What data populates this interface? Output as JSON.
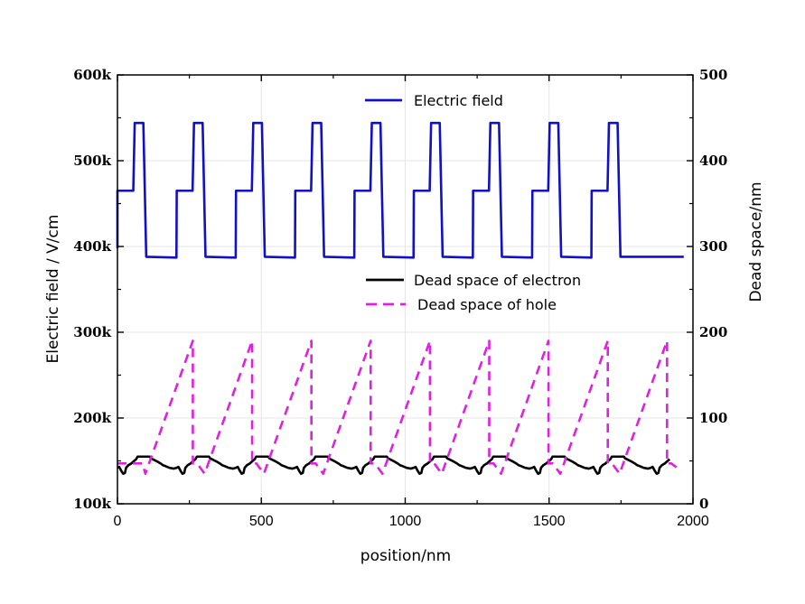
{
  "chart_data": {
    "type": "line",
    "xlabel": "position/nm",
    "ylabel_left": "Electric field / V/cm",
    "ylabel_right": "Dead space/nm",
    "xlim": [
      0,
      2000
    ],
    "ylim_left": [
      100000,
      600000
    ],
    "ylim_right": [
      0,
      500
    ],
    "x_ticks": [
      0,
      500,
      1000,
      1500,
      2000
    ],
    "x_tick_labels": [
      "0",
      "500",
      "1000",
      "1500",
      "2000"
    ],
    "y_left_ticks": [
      100000,
      200000,
      300000,
      400000,
      500000,
      600000
    ],
    "y_left_tick_labels": [
      "100k",
      "200k",
      "300k",
      "400k",
      "500k",
      "600k"
    ],
    "y_right_ticks": [
      0,
      100,
      200,
      300,
      400,
      500
    ],
    "y_right_tick_labels": [
      "0",
      "100",
      "200",
      "300",
      "400",
      "500"
    ],
    "grid": true,
    "legend": [
      "Electric field",
      "Dead space of electron",
      "Dead space of hole"
    ],
    "period_nm": 206,
    "periods": 9,
    "series": [
      {
        "name": "Electric field",
        "axis": "left",
        "color": "#1010c8",
        "style": "solid",
        "period_shape_x": [
          0,
          5,
          55,
          60,
          90,
          100,
          205
        ],
        "period_shape_y": [
          465000,
          465000,
          465000,
          544000,
          544000,
          388000,
          387000
        ],
        "start": [
          0,
          398000
        ],
        "end": [
          1968,
          388000
        ]
      },
      {
        "name": "Dead space of electron",
        "axis": "right",
        "color": "#000000",
        "style": "solid",
        "period_shape_x": [
          0,
          6,
          14,
          20,
          26,
          30,
          38,
          48,
          58,
          65,
          70,
          100,
          112,
          116,
          122,
          140,
          150,
          158,
          166,
          180,
          196
        ],
        "period_shape_y": [
          42,
          43,
          38,
          35,
          36,
          42,
          45,
          47,
          50,
          52,
          55,
          55,
          55,
          53,
          52,
          49,
          47,
          45,
          44,
          42,
          41
        ],
        "x_start": 0,
        "x_end": 1920
      },
      {
        "name": "Dead space of hole",
        "axis": "right",
        "color": "#e020e0",
        "style": "dashed",
        "ramp_ends_x": [
          262,
          468,
          674,
          880,
          1086,
          1292,
          1498,
          1704,
          1910
        ],
        "ramp_bottom": 35,
        "ramp_top": 190,
        "ramp_length_nm": 165,
        "drop_to": 47,
        "plateau_nm": 15,
        "tail_end": [
          1960,
          38
        ]
      }
    ]
  }
}
